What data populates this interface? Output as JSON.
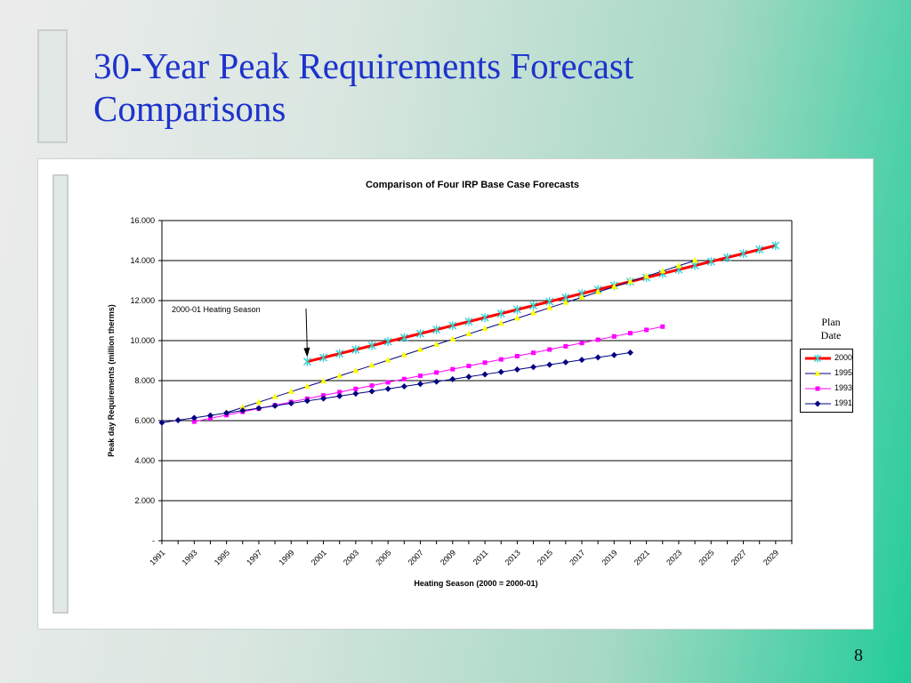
{
  "slide": {
    "title_line1": "30-Year Peak Requirements Forecast",
    "title_line2": "Comparisons",
    "page_number": "8"
  },
  "legend": {
    "title_line1": "Plan",
    "title_line2": "Date",
    "items": [
      {
        "label": "2000",
        "color": "#ff0000",
        "marker_color": "#33cccc",
        "marker": "x-star"
      },
      {
        "label": "1995",
        "color": "#000080",
        "marker_color": "#ffff00",
        "marker": "triangle"
      },
      {
        "label": "1993",
        "color": "#ff00ff",
        "marker_color": "#ff00ff",
        "marker": "square"
      },
      {
        "label": "1991",
        "color": "#000080",
        "marker_color": "#000080",
        "marker": "diamond"
      }
    ]
  },
  "chart_data": {
    "type": "line",
    "title": "Comparison of Four IRP Base Case Forecasts",
    "xlabel": "Heating Season (2000 = 2000-01)",
    "ylabel": "Peak day Requirements (million therms)",
    "xlim": [
      1991,
      2030
    ],
    "ylim": [
      0,
      16
    ],
    "y_tick_labels": [
      "-",
      "2.000",
      "4.000",
      "6.000",
      "8.000",
      "10.000",
      "12.000",
      "14.000",
      "16.000"
    ],
    "x_tick_labels": [
      "1991",
      "1993",
      "1995",
      "1997",
      "1999",
      "2001",
      "2003",
      "2005",
      "2007",
      "2009",
      "2011",
      "2013",
      "2015",
      "2017",
      "2019",
      "2021",
      "2023",
      "2025",
      "2027",
      "2029"
    ],
    "grid": "horizontal",
    "annotation": {
      "text": "2000-01 Heating Season",
      "points_to": {
        "x": 2000,
        "y": 8.95
      }
    },
    "series": [
      {
        "name": "2000",
        "x_start": 2000,
        "x_end": 2029,
        "y_start": 8.95,
        "y_end": 14.75
      },
      {
        "name": "1995",
        "x_start": 1995,
        "x_end": 2024,
        "y_start": 6.4,
        "y_end": 14.0
      },
      {
        "name": "1993",
        "x_start": 1993,
        "x_end": 2022,
        "y_start": 5.95,
        "y_end": 10.7
      },
      {
        "name": "1991",
        "x_start": 1991,
        "x_end": 2020,
        "y_start": 5.9,
        "y_end": 9.4
      }
    ]
  }
}
